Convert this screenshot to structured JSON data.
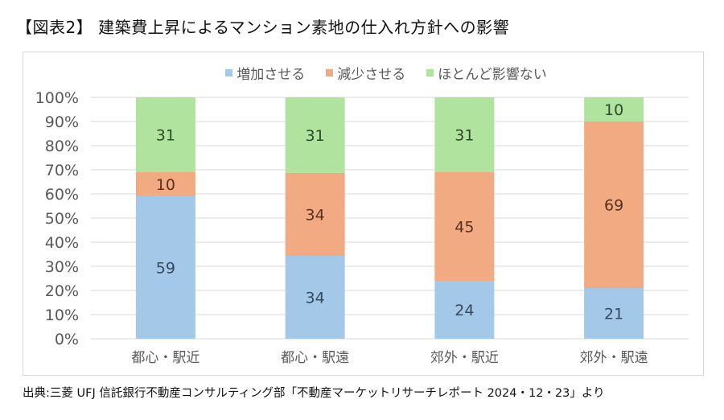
{
  "title": "【図表2】 建築費上昇によるマンション素地の仕入れ方針への影響",
  "source": "出典:三菱 UFJ 信託銀行不動産コンサルティング部「不動産マーケットリサーチレポート 2024・12・23」より",
  "chart_data": {
    "type": "bar",
    "stacked": "percent",
    "title": "",
    "xlabel": "",
    "ylabel": "",
    "ylim": [
      0,
      100
    ],
    "yticks": [
      "0%",
      "10%",
      "20%",
      "30%",
      "40%",
      "50%",
      "60%",
      "70%",
      "80%",
      "90%",
      "100%"
    ],
    "grid": true,
    "legend_position": "top",
    "categories": [
      "都心・駅近",
      "都心・駅遠",
      "郊外・駅近",
      "郊外・駅遠"
    ],
    "series": [
      {
        "name": "増加させる",
        "color": "#a3c8e8",
        "values": [
          59,
          34,
          24,
          21
        ]
      },
      {
        "name": "減少させる",
        "color": "#f1aa82",
        "values": [
          10,
          34,
          45,
          69
        ]
      },
      {
        "name": "ほとんど影響ない",
        "color": "#b0e39e",
        "values": [
          31,
          31,
          31,
          10
        ]
      }
    ]
  }
}
